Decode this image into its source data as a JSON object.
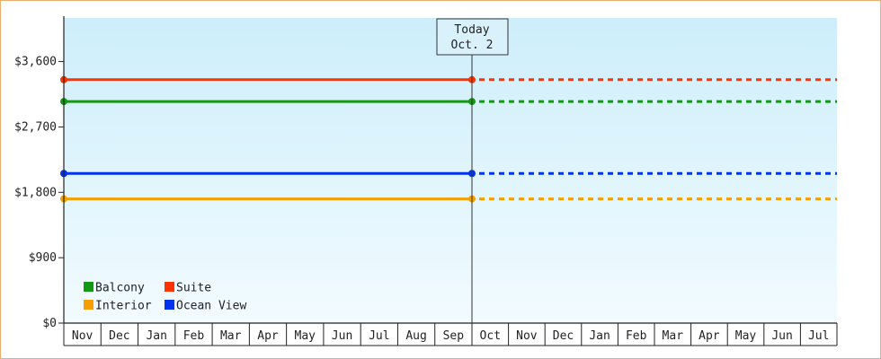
{
  "chart_data": {
    "type": "line",
    "y_ticks": [
      "$0",
      "$900",
      "$1,800",
      "$2,700",
      "$3,600"
    ],
    "ylim": [
      0,
      4200
    ],
    "months": [
      "Nov",
      "Dec",
      "Jan",
      "Feb",
      "Mar",
      "Apr",
      "May",
      "Jun",
      "Jul",
      "Aug",
      "Sep",
      "Oct",
      "Nov",
      "Dec",
      "Jan",
      "Feb",
      "Mar",
      "Apr",
      "May",
      "Jun",
      "Jul"
    ],
    "today": {
      "line1": "Today",
      "line2": "Oct. 2",
      "month_index": 11
    },
    "series": [
      {
        "name": "Suite",
        "color": "#ff3300",
        "value": 3350
      },
      {
        "name": "Balcony",
        "color": "#119911",
        "value": 3050
      },
      {
        "name": "Ocean View",
        "color": "#0033ee",
        "value": 2060
      },
      {
        "name": "Interior",
        "color": "#f5a000",
        "value": 1710
      }
    ],
    "legend": {
      "placement": "bottom-left",
      "order": [
        "Balcony",
        "Suite",
        "Interior",
        "Ocean View"
      ]
    },
    "background_gradient": [
      "#cdeefb",
      "#f2fbff"
    ],
    "grid": false
  }
}
